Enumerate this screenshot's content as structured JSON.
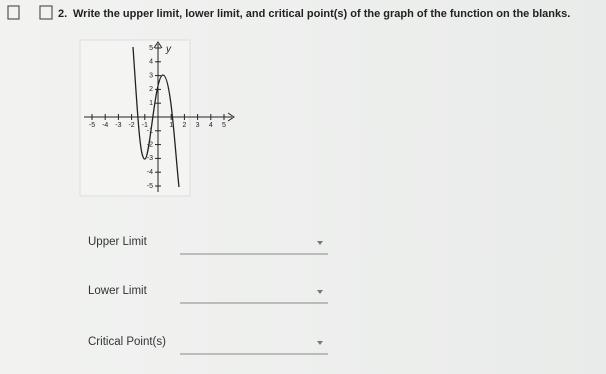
{
  "question": {
    "number": "2.",
    "text": "Write the upper limit, lower limit, and critical point(s) of the graph of the function on the blanks."
  },
  "graph": {
    "axis_label": "y",
    "x_tick_labels": [
      "-5",
      "-4",
      "-3",
      "-2",
      "-1",
      "1",
      "2",
      "3",
      "4",
      "5"
    ],
    "y_tick_labels": [
      "5",
      "4",
      "3",
      "2",
      "1",
      "-1",
      "-2",
      "-3",
      "-4",
      "-5"
    ]
  },
  "fields": [
    {
      "label": "Upper Limit"
    },
    {
      "label": "Lower Limit"
    },
    {
      "label": "Critical Point(s)"
    }
  ]
}
